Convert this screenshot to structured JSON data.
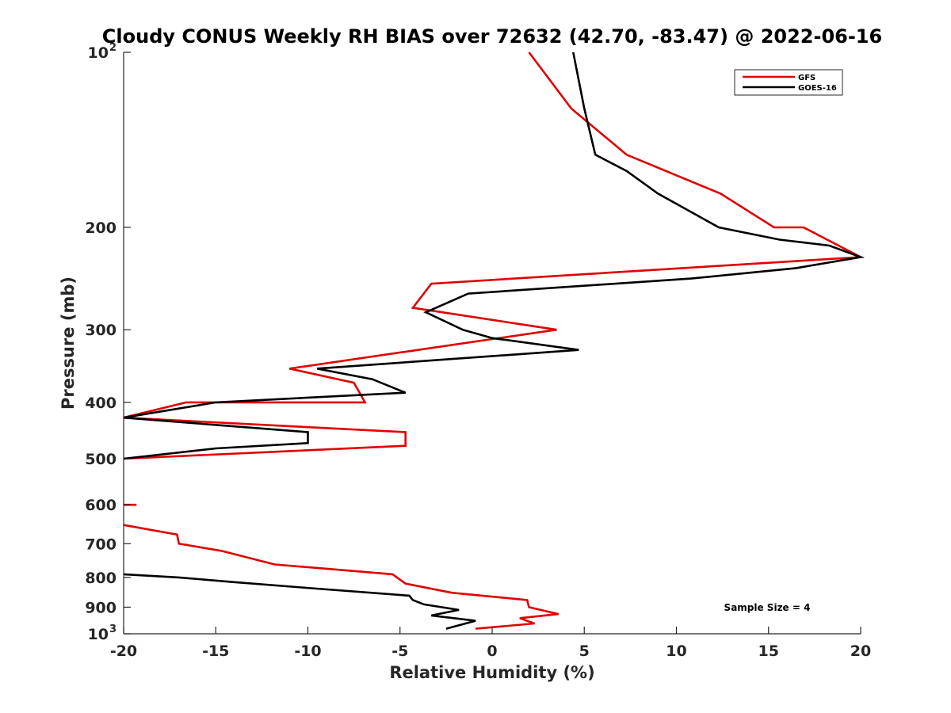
{
  "chart_data": {
    "type": "line",
    "title": "Cloudy CONUS Weekly RH BIAS over 72632 (42.70, -83.47) @ 2022-06-16",
    "xlabel": "Relative Humidity (%)",
    "ylabel": "Pressure (mb)",
    "xlim": [
      -20,
      20
    ],
    "ylim": [
      100,
      1000
    ],
    "y_scale": "log",
    "y_direction": "reversed",
    "grid": false,
    "legend_position": "top-right",
    "x_ticks": [
      -20,
      -15,
      -10,
      -5,
      0,
      5,
      10,
      15,
      20
    ],
    "x_tick_labels": [
      "-20",
      "-15",
      "-10",
      "-5",
      "0",
      "5",
      "10",
      "15",
      "20"
    ],
    "y_ticks": [
      100,
      200,
      300,
      400,
      500,
      600,
      700,
      800,
      900,
      1000
    ],
    "y_tick_labels": [
      {
        "text": "10",
        "sup": "2"
      },
      {
        "text": "200",
        "sup": ""
      },
      {
        "text": "300",
        "sup": ""
      },
      {
        "text": "400",
        "sup": ""
      },
      {
        "text": "500",
        "sup": ""
      },
      {
        "text": "600",
        "sup": ""
      },
      {
        "text": "700",
        "sup": ""
      },
      {
        "text": "800",
        "sup": ""
      },
      {
        "text": "900",
        "sup": ""
      },
      {
        "text": "10",
        "sup": "3"
      }
    ],
    "annotation": "Sample Size = 4",
    "series": [
      {
        "name": "GFS",
        "color": "#e00000",
        "segments": [
          [
            [
              2.0,
              100
            ],
            [
              4.3,
              125
            ],
            [
              7.3,
              150
            ],
            [
              12.4,
              175
            ],
            [
              15.3,
              200
            ],
            [
              16.9,
              200
            ],
            [
              20.0,
              225
            ],
            [
              -3.3,
              250
            ],
            [
              -4.3,
              275
            ],
            [
              3.5,
              300
            ],
            [
              -11.0,
              350
            ],
            [
              -7.5,
              370
            ],
            [
              -6.9,
              400
            ],
            [
              -16.6,
              400
            ],
            [
              -20.0,
              425
            ],
            [
              -4.7,
              450
            ],
            [
              -4.7,
              475
            ],
            [
              -20.0,
              500
            ]
          ],
          [
            [
              -20.0,
              600
            ],
            [
              -19.3,
              600
            ]
          ],
          [
            [
              -20.0,
              650
            ],
            [
              -17.1,
              675
            ],
            [
              -17.0,
              700
            ],
            [
              -14.7,
              720
            ],
            [
              -11.8,
              760
            ],
            [
              -7.5,
              780
            ],
            [
              -5.4,
              790
            ],
            [
              -4.7,
              820
            ],
            [
              -2.2,
              850
            ],
            [
              1.9,
              875
            ],
            [
              2.0,
              900
            ],
            [
              3.6,
              925
            ],
            [
              1.5,
              940
            ],
            [
              2.3,
              960
            ],
            [
              -0.9,
              980
            ]
          ]
        ]
      },
      {
        "name": "GOES-16",
        "color": "#000000",
        "segments": [
          [
            [
              4.4,
              100
            ],
            [
              5.0,
              125
            ],
            [
              5.6,
              150
            ],
            [
              7.3,
              160
            ],
            [
              9.0,
              175
            ],
            [
              12.3,
              200
            ],
            [
              15.6,
              210
            ],
            [
              18.3,
              215
            ],
            [
              20.0,
              225
            ],
            [
              16.5,
              235
            ],
            [
              10.8,
              245
            ],
            [
              -1.3,
              260
            ],
            [
              -3.6,
              280
            ],
            [
              -1.6,
              300
            ],
            [
              0.0,
              310
            ],
            [
              4.7,
              325
            ],
            [
              -9.5,
              350
            ],
            [
              -6.5,
              365
            ],
            [
              -4.7,
              385
            ],
            [
              -15.0,
              400
            ],
            [
              -20.0,
              425
            ],
            [
              -10.0,
              450
            ],
            [
              -10.0,
              470
            ],
            [
              -15.0,
              480
            ],
            [
              -20.0,
              500
            ]
          ],
          [
            [
              -20.0,
              790
            ],
            [
              -17.0,
              800
            ],
            [
              -14.0,
              815
            ],
            [
              -9.8,
              835
            ],
            [
              -4.5,
              860
            ],
            [
              -4.3,
              875
            ],
            [
              -3.7,
              890
            ],
            [
              -1.8,
              910
            ],
            [
              -3.3,
              930
            ],
            [
              -0.9,
              950
            ],
            [
              -2.5,
              980
            ]
          ]
        ]
      }
    ]
  }
}
